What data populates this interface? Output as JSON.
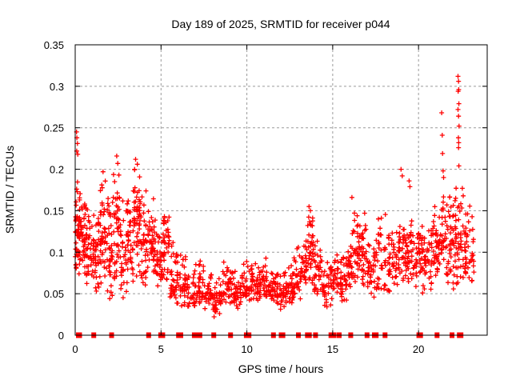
{
  "title": "Day 189 of 2025, SRMTID for receiver p044",
  "x_axis": {
    "label": "GPS time / hours",
    "min": 0,
    "max": 24,
    "tick_values": [
      0,
      5,
      10,
      15,
      20
    ],
    "tick_labels": [
      "0",
      "5",
      "10",
      "15",
      "20"
    ]
  },
  "y_axis": {
    "label": "SRMTID / TECUs",
    "min": 0,
    "max": 0.35,
    "tick_values": [
      0,
      0.05,
      0.1,
      0.15,
      0.2,
      0.25,
      0.3,
      0.35
    ],
    "tick_labels": [
      "0",
      "0.05",
      "0.1",
      "0.15",
      "0.2",
      "0.25",
      "0.3",
      "0.35"
    ]
  },
  "colors": {
    "marker": "#ff0000",
    "frame": "#000000",
    "grid": "#9a9a9a",
    "text": "#000000",
    "background": "#ffffff"
  },
  "chart_data": {
    "type": "scatter",
    "title": "Day 189 of 2025, SRMTID for receiver p044",
    "xlabel": "GPS time / hours",
    "ylabel": "SRMTID / TECUs",
    "xlim": [
      0,
      24
    ],
    "ylim": [
      0,
      0.35
    ],
    "grid": "dashed, at every major tick",
    "legend": "none",
    "marker": "plus",
    "marker_color": "#ff0000",
    "description": "Dense scatter of SRMTID values vs GPS time. density_segments rows are [hour_start, hour_end, n_points, y_min, y_mode, y_max] describing the point cloud envelope read from the plot; outlier_points are individually visible high points [hour, value]; zero_clusters are dense runs of points at value 0 on the x-axis given as [hour_center, width_hours].",
    "density_segments": [
      [
        0.0,
        0.3,
        55,
        0.065,
        0.125,
        0.205
      ],
      [
        0.3,
        0.6,
        35,
        0.055,
        0.115,
        0.175
      ],
      [
        0.6,
        1.0,
        38,
        0.05,
        0.1,
        0.16
      ],
      [
        1.0,
        1.4,
        42,
        0.04,
        0.1,
        0.155
      ],
      [
        1.4,
        1.8,
        45,
        0.05,
        0.12,
        0.195
      ],
      [
        1.8,
        2.2,
        40,
        0.035,
        0.1,
        0.175
      ],
      [
        2.2,
        2.6,
        42,
        0.05,
        0.135,
        0.215
      ],
      [
        2.6,
        3.0,
        32,
        0.04,
        0.09,
        0.165
      ],
      [
        3.0,
        3.4,
        40,
        0.05,
        0.12,
        0.185
      ],
      [
        3.4,
        3.8,
        50,
        0.06,
        0.145,
        0.21
      ],
      [
        3.8,
        4.2,
        36,
        0.05,
        0.11,
        0.185
      ],
      [
        4.2,
        4.7,
        46,
        0.05,
        0.11,
        0.17
      ],
      [
        4.7,
        5.1,
        34,
        0.04,
        0.08,
        0.135
      ],
      [
        5.1,
        5.5,
        40,
        0.05,
        0.11,
        0.155
      ],
      [
        5.5,
        6.0,
        40,
        0.03,
        0.07,
        0.12
      ],
      [
        6.0,
        6.5,
        35,
        0.03,
        0.06,
        0.105
      ],
      [
        6.5,
        7.0,
        30,
        0.028,
        0.05,
        0.085
      ],
      [
        7.0,
        7.5,
        34,
        0.03,
        0.06,
        0.108
      ],
      [
        7.5,
        8.0,
        30,
        0.025,
        0.05,
        0.085
      ],
      [
        8.0,
        8.5,
        36,
        0.02,
        0.042,
        0.07
      ],
      [
        8.5,
        9.2,
        42,
        0.03,
        0.055,
        0.105
      ],
      [
        9.2,
        9.7,
        30,
        0.03,
        0.05,
        0.078
      ],
      [
        9.7,
        10.2,
        36,
        0.035,
        0.058,
        0.105
      ],
      [
        10.2,
        10.7,
        36,
        0.04,
        0.06,
        0.092
      ],
      [
        10.7,
        11.2,
        36,
        0.04,
        0.062,
        0.1
      ],
      [
        11.2,
        11.7,
        34,
        0.035,
        0.055,
        0.085
      ],
      [
        11.7,
        12.2,
        34,
        0.03,
        0.05,
        0.08
      ],
      [
        12.2,
        12.7,
        36,
        0.035,
        0.055,
        0.085
      ],
      [
        12.7,
        13.2,
        36,
        0.04,
        0.065,
        0.11
      ],
      [
        13.2,
        13.5,
        26,
        0.05,
        0.09,
        0.13
      ],
      [
        13.5,
        13.9,
        36,
        0.05,
        0.11,
        0.152
      ],
      [
        13.9,
        14.4,
        36,
        0.04,
        0.075,
        0.115
      ],
      [
        14.4,
        15.0,
        40,
        0.03,
        0.06,
        0.095
      ],
      [
        15.0,
        15.6,
        40,
        0.035,
        0.065,
        0.1
      ],
      [
        15.6,
        16.0,
        30,
        0.04,
        0.075,
        0.12
      ],
      [
        16.0,
        16.5,
        42,
        0.05,
        0.1,
        0.165
      ],
      [
        16.5,
        17.0,
        40,
        0.05,
        0.1,
        0.155
      ],
      [
        17.0,
        17.5,
        34,
        0.04,
        0.075,
        0.12
      ],
      [
        17.5,
        18.2,
        42,
        0.04,
        0.085,
        0.155
      ],
      [
        18.2,
        18.8,
        42,
        0.05,
        0.09,
        0.13
      ],
      [
        18.8,
        19.3,
        42,
        0.06,
        0.1,
        0.15
      ],
      [
        19.3,
        19.8,
        36,
        0.06,
        0.1,
        0.14
      ],
      [
        19.8,
        20.3,
        40,
        0.05,
        0.095,
        0.14
      ],
      [
        20.3,
        20.8,
        36,
        0.05,
        0.09,
        0.13
      ],
      [
        20.8,
        21.3,
        40,
        0.06,
        0.105,
        0.16
      ],
      [
        21.3,
        21.6,
        24,
        0.08,
        0.12,
        0.19
      ],
      [
        21.6,
        22.1,
        46,
        0.05,
        0.1,
        0.185
      ],
      [
        22.1,
        22.5,
        40,
        0.05,
        0.115,
        0.2
      ],
      [
        22.5,
        23.0,
        36,
        0.05,
        0.1,
        0.18
      ],
      [
        23.0,
        23.25,
        15,
        0.05,
        0.09,
        0.145
      ]
    ],
    "outlier_points": [
      [
        0.08,
        0.245
      ],
      [
        0.1,
        0.238
      ],
      [
        0.13,
        0.231
      ],
      [
        0.09,
        0.222
      ],
      [
        0.15,
        0.218
      ],
      [
        2.42,
        0.216
      ],
      [
        2.48,
        0.207
      ],
      [
        3.52,
        0.212
      ],
      [
        3.62,
        0.206
      ],
      [
        1.62,
        0.197
      ],
      [
        13.62,
        0.155
      ],
      [
        13.7,
        0.15
      ],
      [
        16.12,
        0.166
      ],
      [
        18.98,
        0.2
      ],
      [
        19.05,
        0.192
      ],
      [
        19.45,
        0.186
      ],
      [
        19.5,
        0.179
      ],
      [
        21.35,
        0.268
      ],
      [
        21.38,
        0.241
      ],
      [
        21.4,
        0.219
      ],
      [
        21.43,
        0.198
      ],
      [
        21.46,
        0.19
      ],
      [
        22.3,
        0.312
      ],
      [
        22.33,
        0.306
      ],
      [
        22.34,
        0.296
      ],
      [
        22.31,
        0.294
      ],
      [
        22.35,
        0.279
      ],
      [
        22.3,
        0.272
      ],
      [
        22.33,
        0.264
      ],
      [
        22.36,
        0.252
      ],
      [
        22.32,
        0.238
      ],
      [
        22.34,
        0.232
      ],
      [
        22.33,
        0.226
      ],
      [
        22.35,
        0.204
      ],
      [
        22.55,
        0.177
      ],
      [
        22.6,
        0.168
      ]
    ],
    "zero_clusters": [
      [
        0.22,
        0.35
      ],
      [
        1.08,
        0.1
      ],
      [
        2.12,
        0.12
      ],
      [
        4.28,
        0.18
      ],
      [
        4.98,
        0.04
      ],
      [
        5.1,
        0.04
      ],
      [
        6.02,
        0.05
      ],
      [
        6.15,
        0.05
      ],
      [
        7.1,
        0.6
      ],
      [
        8.07,
        0.12
      ],
      [
        9.05,
        0.14
      ],
      [
        9.97,
        0.04
      ],
      [
        10.12,
        0.04
      ],
      [
        11.55,
        0.12
      ],
      [
        12.0,
        0.04
      ],
      [
        12.1,
        0.04
      ],
      [
        13.0,
        0.12
      ],
      [
        13.53,
        0.04
      ],
      [
        13.64,
        0.04
      ],
      [
        14.0,
        0.12
      ],
      [
        14.9,
        0.04
      ],
      [
        14.99,
        0.04
      ],
      [
        15.08,
        0.04
      ],
      [
        15.38,
        0.1
      ],
      [
        16.05,
        0.12
      ],
      [
        17.0,
        0.12
      ],
      [
        17.43,
        0.04
      ],
      [
        17.53,
        0.04
      ],
      [
        18.05,
        0.12
      ],
      [
        20.02,
        0.04
      ],
      [
        20.12,
        0.04
      ],
      [
        21.08,
        0.14
      ],
      [
        21.95,
        0.1
      ],
      [
        22.38,
        0.04
      ],
      [
        22.47,
        0.04
      ]
    ]
  }
}
